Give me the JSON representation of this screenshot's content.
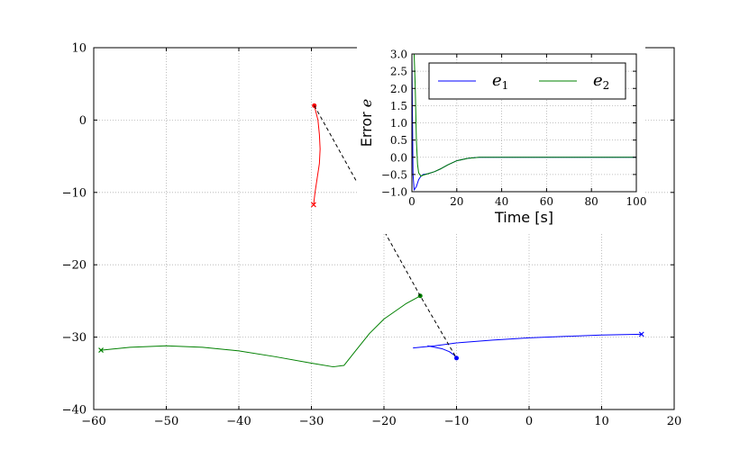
{
  "chart_data": [
    {
      "type": "line",
      "title": "",
      "xlabel": "",
      "ylabel": "",
      "xlim": [
        -60,
        20
      ],
      "ylim": [
        -40,
        10
      ],
      "grid": true,
      "x_ticks": [
        -60,
        -50,
        -40,
        -30,
        -20,
        -10,
        0,
        10,
        20
      ],
      "y_ticks": [
        -40,
        -30,
        -20,
        -10,
        0,
        10
      ],
      "x_tick_labels": [
        "−60",
        "−50",
        "−40",
        "−30",
        "−20",
        "−10",
        "0",
        "10",
        "20"
      ],
      "y_tick_labels": [
        "−40",
        "−30",
        "−20",
        "−10",
        "0",
        "10"
      ],
      "series": [
        {
          "color": "#ff0000",
          "points": [
            [
              -29.6,
              2.0
            ],
            [
              -29.1,
              0.0
            ],
            [
              -28.9,
              -2.0
            ],
            [
              -28.8,
              -4.0
            ],
            [
              -28.9,
              -6.0
            ],
            [
              -29.2,
              -8.0
            ],
            [
              -29.5,
              -10.0
            ],
            [
              -29.7,
              -11.7
            ]
          ],
          "start_marker": "dot",
          "end_marker": "x"
        },
        {
          "color": "#008000",
          "points": [
            [
              -59.0,
              -31.8
            ],
            [
              -55.0,
              -31.4
            ],
            [
              -50.0,
              -31.2
            ],
            [
              -45.0,
              -31.4
            ],
            [
              -40.0,
              -31.9
            ],
            [
              -35.0,
              -32.7
            ],
            [
              -30.0,
              -33.6
            ],
            [
              -27.0,
              -34.1
            ],
            [
              -25.5,
              -33.9
            ],
            [
              -24.0,
              -32.0
            ],
            [
              -22.0,
              -29.5
            ],
            [
              -20.0,
              -27.5
            ],
            [
              -17.0,
              -25.4
            ],
            [
              -15.0,
              -24.3
            ]
          ],
          "start_marker": "x",
          "end_marker": "dot"
        },
        {
          "color": "#0000ff",
          "points": [
            [
              -16.0,
              -31.5
            ],
            [
              -13.0,
              -31.2
            ],
            [
              -10.0,
              -30.8
            ],
            [
              -5.0,
              -30.4
            ],
            [
              0.0,
              -30.1
            ],
            [
              5.0,
              -29.9
            ],
            [
              10.0,
              -29.7
            ],
            [
              15.5,
              -29.6
            ]
          ],
          "end_marker": "x"
        },
        {
          "color": "#0000ff",
          "points": [
            [
              -14.0,
              -31.2
            ],
            [
              -12.0,
              -31.6
            ],
            [
              -11.0,
              -32.0
            ],
            [
              -10.3,
              -32.5
            ],
            [
              -10.0,
              -32.9
            ]
          ],
          "end_marker": "dot"
        },
        {
          "color": "#000000",
          "dashed": true,
          "points": [
            [
              -29.6,
              2.0
            ],
            [
              -15.0,
              -24.3
            ],
            [
              -10.0,
              -32.9
            ]
          ]
        }
      ]
    },
    {
      "type": "line",
      "title": "",
      "xlabel": "Time [s]",
      "ylabel": "Error e",
      "ylabel_parts": [
        "Error ",
        "e"
      ],
      "xlim": [
        0,
        100
      ],
      "ylim": [
        -1.0,
        3.0
      ],
      "grid": true,
      "x_ticks": [
        0,
        20,
        40,
        60,
        80,
        100
      ],
      "y_ticks": [
        -1.0,
        -0.5,
        0.0,
        0.5,
        1.0,
        1.5,
        2.0,
        2.5,
        3.0
      ],
      "x_tick_labels": [
        "0",
        "20",
        "40",
        "60",
        "80",
        "100"
      ],
      "y_tick_labels": [
        "−1.0",
        "−0.5",
        "0.0",
        "0.5",
        "1.0",
        "1.5",
        "2.0",
        "2.5",
        "3.0"
      ],
      "legend": {
        "position": "top",
        "entries": [
          {
            "base": "e",
            "sub": "1",
            "color": "#0000ff"
          },
          {
            "base": "e",
            "sub": "2",
            "color": "#008000"
          }
        ]
      },
      "series": [
        {
          "name": "e1",
          "color": "#0000ff",
          "points": [
            [
              0,
              3.0
            ],
            [
              0.2,
              1.5
            ],
            [
              0.5,
              -0.5
            ],
            [
              1,
              -0.95
            ],
            [
              2,
              -0.85
            ],
            [
              3,
              -0.65
            ],
            [
              4,
              -0.55
            ],
            [
              5,
              -0.5
            ],
            [
              7,
              -0.48
            ],
            [
              10,
              -0.42
            ],
            [
              13,
              -0.33
            ],
            [
              16,
              -0.22
            ],
            [
              20,
              -0.1
            ],
            [
              25,
              -0.03
            ],
            [
              30,
              0.0
            ],
            [
              40,
              0.0
            ],
            [
              100,
              0.0
            ]
          ]
        },
        {
          "name": "e2",
          "color": "#008000",
          "points": [
            [
              0,
              3.0
            ],
            [
              1,
              3.0
            ],
            [
              1.5,
              2.0
            ],
            [
              2,
              0.5
            ],
            [
              2.5,
              -0.2
            ],
            [
              3,
              -0.45
            ],
            [
              4,
              -0.55
            ],
            [
              5,
              -0.52
            ],
            [
              7,
              -0.48
            ],
            [
              10,
              -0.42
            ],
            [
              13,
              -0.33
            ],
            [
              16,
              -0.22
            ],
            [
              20,
              -0.1
            ],
            [
              25,
              -0.03
            ],
            [
              30,
              0.0
            ],
            [
              40,
              0.0
            ],
            [
              100,
              0.0
            ]
          ]
        }
      ]
    }
  ]
}
